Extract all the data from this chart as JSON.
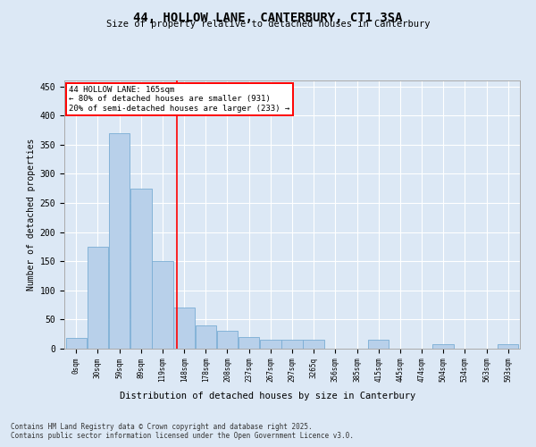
{
  "title": "44, HOLLOW LANE, CANTERBURY, CT1 3SA",
  "subtitle": "Size of property relative to detached houses in Canterbury",
  "xlabel": "Distribution of detached houses by size in Canterbury",
  "ylabel": "Number of detached properties",
  "bar_color": "#b8d0ea",
  "bar_edge_color": "#7aadd4",
  "background_color": "#dce8f5",
  "grid_color": "#ffffff",
  "xtick_labels": [
    "0sqm",
    "30sqm",
    "59sqm",
    "89sqm",
    "119sqm",
    "148sqm",
    "178sqm",
    "208sqm",
    "237sqm",
    "267sqm",
    "297sqm",
    "3265q",
    "356sqm",
    "385sqm",
    "415sqm",
    "445sqm",
    "474sqm",
    "504sqm",
    "534sqm",
    "563sqm",
    "593sqm"
  ],
  "bar_heights": [
    18,
    175,
    370,
    275,
    150,
    70,
    40,
    30,
    20,
    15,
    15,
    15,
    0,
    0,
    15,
    0,
    0,
    8,
    0,
    0,
    8
  ],
  "ylim": [
    0,
    460
  ],
  "yticks": [
    0,
    50,
    100,
    150,
    200,
    250,
    300,
    350,
    400,
    450
  ],
  "property_line_x": 4.65,
  "annotation_text": "44 HOLLOW LANE: 165sqm\n← 80% of detached houses are smaller (931)\n20% of semi-detached houses are larger (233) →",
  "footer_line1": "Contains HM Land Registry data © Crown copyright and database right 2025.",
  "footer_line2": "Contains public sector information licensed under the Open Government Licence v3.0."
}
